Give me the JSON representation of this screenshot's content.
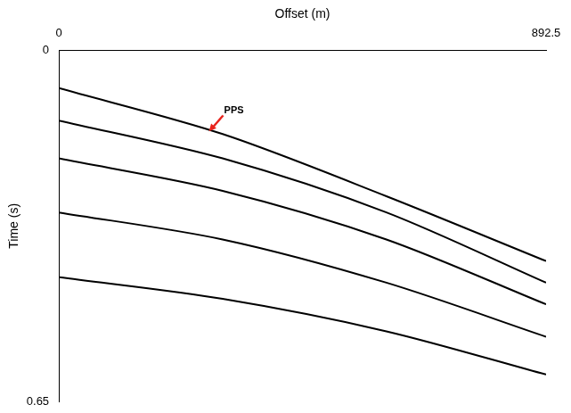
{
  "chart_data": {
    "type": "line",
    "x_label": "Offset (m)",
    "y_label": "Time (s)",
    "xlim": [
      0,
      892.5
    ],
    "xticks": [
      0,
      892.5
    ],
    "ylim": [
      0.65,
      0
    ],
    "yticks": [
      0,
      0.65
    ],
    "grid": false,
    "x": [
      0,
      300,
      600,
      892.5
    ],
    "series": [
      {
        "color": "#000000",
        "values": [
          0.07,
          0.155,
          0.27,
          0.39
        ]
      },
      {
        "color": "#000000",
        "values": [
          0.13,
          0.2,
          0.3,
          0.43
        ]
      },
      {
        "color": "#000000",
        "values": [
          0.2,
          0.26,
          0.35,
          0.47
        ]
      },
      {
        "color": "#000000",
        "values": [
          0.3,
          0.35,
          0.43,
          0.53
        ]
      },
      {
        "color": "#000000",
        "values": [
          0.42,
          0.46,
          0.52,
          0.6
        ]
      }
    ],
    "annotations": [
      {
        "text": "PPS",
        "x": 275,
        "y": 0.15,
        "color": "#e8231c"
      }
    ]
  }
}
